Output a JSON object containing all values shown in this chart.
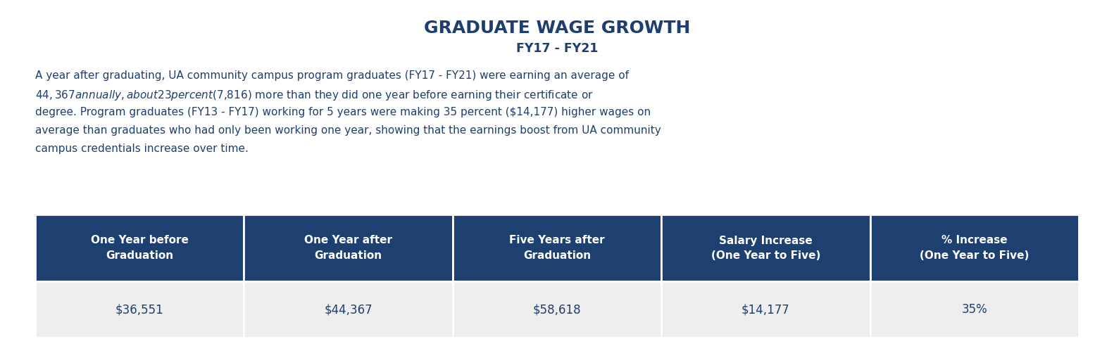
{
  "title": "GRADUATE WAGE GROWTH",
  "subtitle": "FY17 - FY21",
  "body_lines": [
    "A year after graduating, UA community campus program graduates (FY17 - FY21) were earning an average of",
    "$44,367 annually, about 23 percent ($7,816) more than they did one year before earning their certificate or",
    "degree. Program graduates (FY13 - FY17) working for 5 years were making 35 percent ($14,177) higher wages on",
    "average than graduates who had only been working one year, showing that the earnings boost from UA community",
    "campus credentials increase over time."
  ],
  "header_bg_color": "#1e4070",
  "header_text_color": "#ffffff",
  "row_bg_color": "#eeeeee",
  "row_text_color": "#1e3f6e",
  "title_color": "#1e3f6e",
  "subtitle_color": "#1e3f6e",
  "body_color": "#1e3f6e",
  "col_headers": [
    "One Year before\nGraduation",
    "One Year after\nGraduation",
    "Five Years after\nGraduation",
    "Salary Increase\n(One Year to Five)",
    "% Increase\n(One Year to Five)"
  ],
  "row_values": [
    "$36,551",
    "$44,367",
    "$58,618",
    "$14,177",
    "35%"
  ],
  "background_color": "#ffffff"
}
